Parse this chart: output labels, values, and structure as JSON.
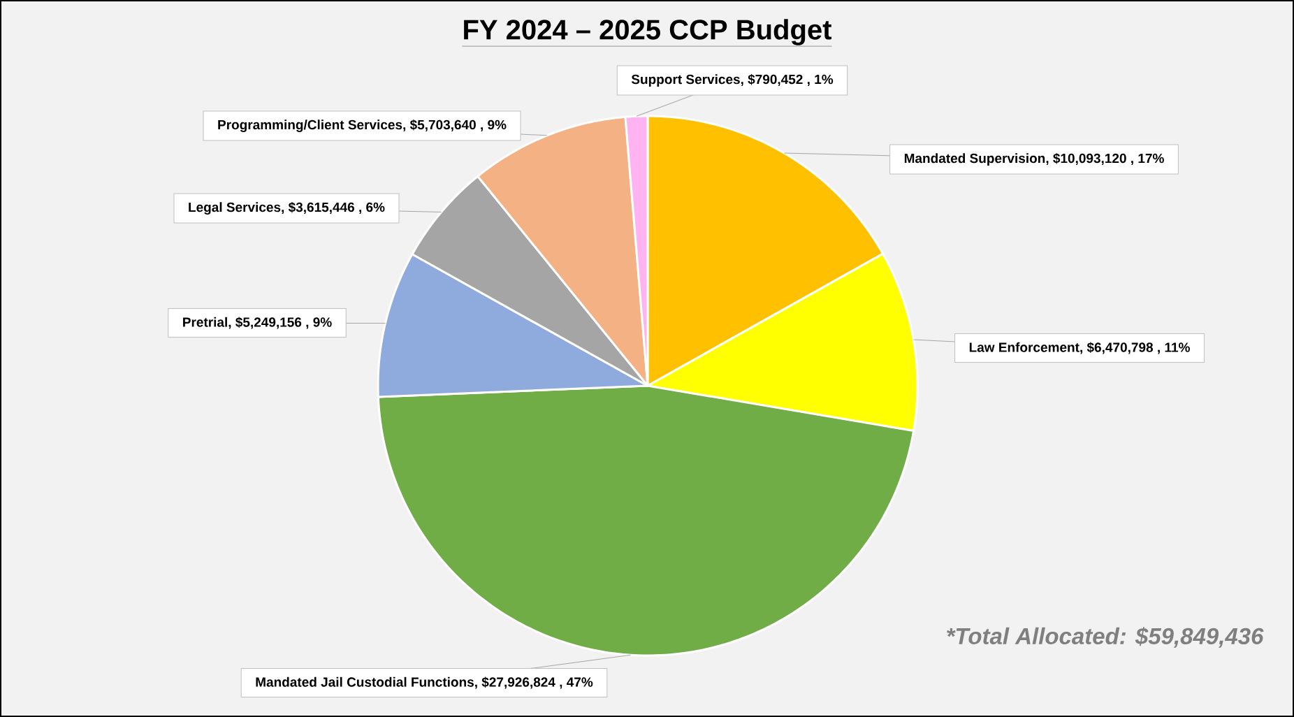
{
  "chart_data": {
    "type": "pie",
    "title": "FY 2024 – 2025 CCP Budget",
    "categories": [
      "Mandated Supervision",
      "Law Enforcement",
      "Mandated Jail Custodial Functions",
      "Pretrial",
      "Legal Services",
      "Programming/Client Services",
      "Support Services"
    ],
    "values": [
      10093120,
      6470798,
      27926824,
      5249156,
      3615446,
      5703640,
      790452
    ],
    "colors": [
      "#ffc000",
      "#ffff00",
      "#70ad47",
      "#8faadc",
      "#a5a5a5",
      "#f4b183",
      "#ffb3f0"
    ],
    "value_labels": [
      ", $10,093,120 , 17%",
      ", $6,470,798 , 11%",
      ", $27,926,824 , 47%",
      ", $5,249,156 , 9%",
      ", $3,615,446 , 6%",
      ", $5,703,640 , 9%",
      ", $790,452 , 1%"
    ],
    "annotations": [
      "*Total Allocated: $59,849,436"
    ]
  }
}
